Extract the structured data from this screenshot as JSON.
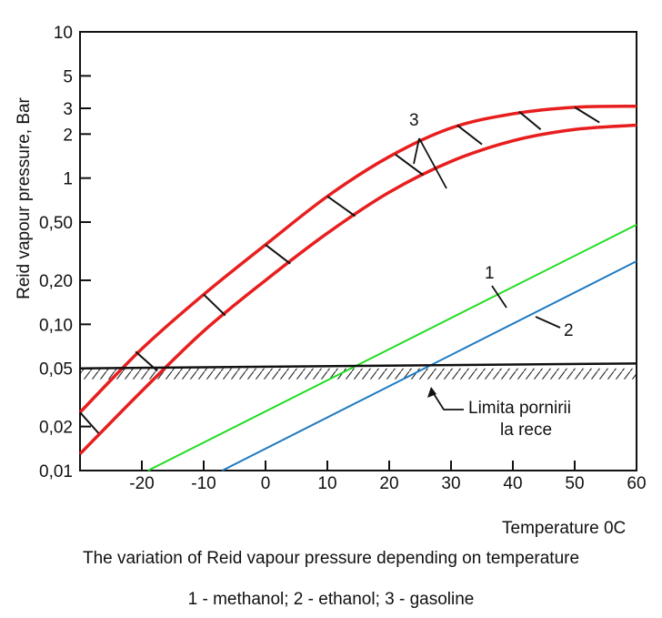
{
  "chart_data": {
    "type": "line",
    "xlabel": "Temperature 0C",
    "ylabel": "Reid vapour pressure, Bar",
    "xlim": [
      -30,
      60
    ],
    "x_ticks": [
      {
        "value": -20,
        "label": "-20"
      },
      {
        "value": -10,
        "label": "-10"
      },
      {
        "value": 0,
        "label": "0"
      },
      {
        "value": 10,
        "label": "10"
      },
      {
        "value": 20,
        "label": "20"
      },
      {
        "value": 30,
        "label": "30"
      },
      {
        "value": 40,
        "label": "40"
      },
      {
        "value": 50,
        "label": "50"
      },
      {
        "value": 60,
        "label": "60"
      }
    ],
    "y_scale": "log",
    "y_ticks": [
      {
        "value": 0.01,
        "label": "0,01"
      },
      {
        "value": 0.02,
        "label": "0,02"
      },
      {
        "value": 0.05,
        "label": "0,05"
      },
      {
        "value": 0.1,
        "label": "0,10"
      },
      {
        "value": 0.2,
        "label": "0,20"
      },
      {
        "value": 0.5,
        "label": "0,50"
      },
      {
        "value": 1,
        "label": "1"
      },
      {
        "value": 2,
        "label": "2"
      },
      {
        "value": 3,
        "label": "3"
      },
      {
        "value": 5,
        "label": "5"
      },
      {
        "value": 10,
        "label": "10"
      }
    ],
    "series": [
      {
        "name": "1",
        "description": "methanol",
        "color": "#22dd22",
        "x": [
          -19,
          60
        ],
        "y": [
          0.01,
          0.48
        ]
      },
      {
        "name": "2",
        "description": "ethanol",
        "color": "#1f7ac0",
        "x": [
          -7,
          60
        ],
        "y": [
          0.01,
          0.27
        ]
      },
      {
        "name": "3 upper",
        "description": "gasoline band upper bound",
        "color": "#e81e1e",
        "x": [
          -30,
          -20,
          -10,
          0,
          10,
          20,
          30,
          40,
          50,
          60
        ],
        "y": [
          0.025,
          0.068,
          0.16,
          0.35,
          0.75,
          1.4,
          2.2,
          2.75,
          3.05,
          3.1
        ]
      },
      {
        "name": "3 lower",
        "description": "gasoline band lower bound",
        "color": "#e81e1e",
        "x": [
          -30,
          -20,
          -10,
          0,
          10,
          20,
          30,
          40,
          50,
          60
        ],
        "y": [
          0.013,
          0.035,
          0.09,
          0.2,
          0.42,
          0.8,
          1.3,
          1.8,
          2.15,
          2.3
        ]
      }
    ],
    "hatch_segments": [
      {
        "x1": -30,
        "y1": 0.025,
        "x2": -27,
        "y2": 0.018
      },
      {
        "x1": -21,
        "y1": 0.065,
        "x2": -17.5,
        "y2": 0.048
      },
      {
        "x1": -10,
        "y1": 0.16,
        "x2": -6.5,
        "y2": 0.115
      },
      {
        "x1": 0,
        "y1": 0.35,
        "x2": 4,
        "y2": 0.26
      },
      {
        "x1": 10,
        "y1": 0.75,
        "x2": 14.5,
        "y2": 0.55
      },
      {
        "x1": 21,
        "y1": 1.45,
        "x2": 25.5,
        "y2": 1.05
      },
      {
        "x1": 31,
        "y1": 2.3,
        "x2": 35,
        "y2": 1.7
      },
      {
        "x1": 41,
        "y1": 2.85,
        "x2": 44.5,
        "y2": 2.15
      },
      {
        "x1": 50,
        "y1": 3.05,
        "x2": 54,
        "y2": 2.4
      }
    ],
    "cold_start_limit": {
      "y": 0.05,
      "x_from": -30,
      "x_to": 60
    },
    "annotations": {
      "label_1": "1",
      "label_2": "2",
      "label_3": "3",
      "limit_line1": "Limita pornirii",
      "limit_line2": "la rece"
    },
    "caption_title": "The variation of Reid vapour pressure depending on temperature",
    "caption_legend": "1 - methanol; 2 - ethanol; 3 - gasoline"
  }
}
